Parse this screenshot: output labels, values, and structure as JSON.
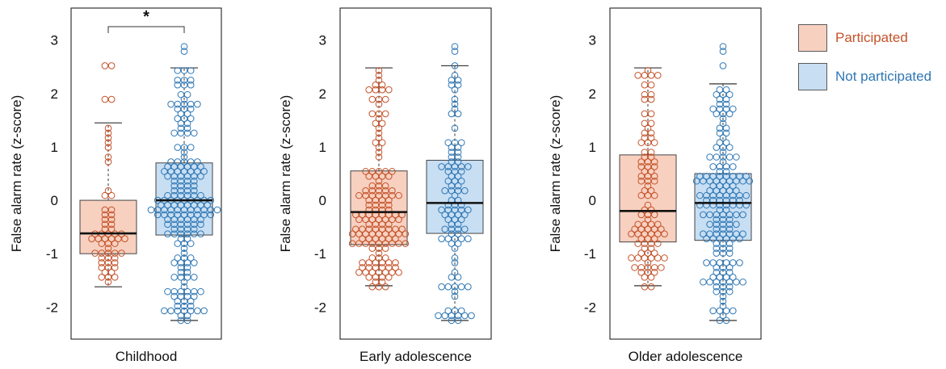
{
  "legend": {
    "items": [
      {
        "label": "Participated",
        "fill": "#f7d0c0",
        "stroke": "#c4532a"
      },
      {
        "label": "Not participated",
        "fill": "#c7def3",
        "stroke": "#2f77b4"
      }
    ]
  },
  "chart_data": [
    {
      "type": "box",
      "xlabel": "Childhood",
      "ylabel": "False alarm rate (z-score)",
      "ylim": [
        -2.6,
        3.6
      ],
      "yticks": [
        -2,
        -1,
        0,
        1,
        2,
        3
      ],
      "significance": "*",
      "groups": [
        {
          "name": "Participated",
          "whisker_low": -1.62,
          "q1": -1.0,
          "median": -0.62,
          "q3": 0.0,
          "whisker_high": 1.45,
          "outliers": [
            1.85,
            1.9,
            2.5,
            2.52
          ],
          "n": 55
        },
        {
          "name": "Not participated",
          "whisker_low": -2.25,
          "q1": -0.65,
          "median": 0.0,
          "q3": 0.7,
          "whisker_high": 2.48,
          "outliers": [
            2.83,
            2.85
          ],
          "n": 190
        }
      ]
    },
    {
      "type": "box",
      "xlabel": "Early adolescence",
      "ylabel": "False alarm rate (z-score)",
      "ylim": [
        -2.6,
        3.6
      ],
      "yticks": [
        -2,
        -1,
        0,
        1,
        2,
        3
      ],
      "groups": [
        {
          "name": "Participated",
          "whisker_low": -1.6,
          "q1": -0.83,
          "median": -0.22,
          "q3": 0.55,
          "whisker_high": 2.48,
          "outliers": [],
          "n": 150
        },
        {
          "name": "Not participated",
          "whisker_low": -2.25,
          "q1": -0.62,
          "median": -0.05,
          "q3": 0.75,
          "whisker_high": 2.52,
          "outliers": [
            2.83,
            2.85
          ],
          "n": 100
        }
      ]
    },
    {
      "type": "box",
      "xlabel": "Older adolescence",
      "ylabel": "False alarm rate (z-score)",
      "ylim": [
        -2.6,
        3.6
      ],
      "yticks": [
        -2,
        -1,
        0,
        1,
        2,
        3
      ],
      "groups": [
        {
          "name": "Participated",
          "whisker_low": -1.6,
          "q1": -0.78,
          "median": -0.2,
          "q3": 0.85,
          "whisker_high": 2.48,
          "outliers": [],
          "n": 100
        },
        {
          "name": "Not participated",
          "whisker_low": -2.25,
          "q1": -0.75,
          "median": -0.05,
          "q3": 0.5,
          "whisker_high": 2.18,
          "outliers": [
            2.5,
            2.83,
            2.85
          ],
          "n": 170
        }
      ]
    }
  ]
}
